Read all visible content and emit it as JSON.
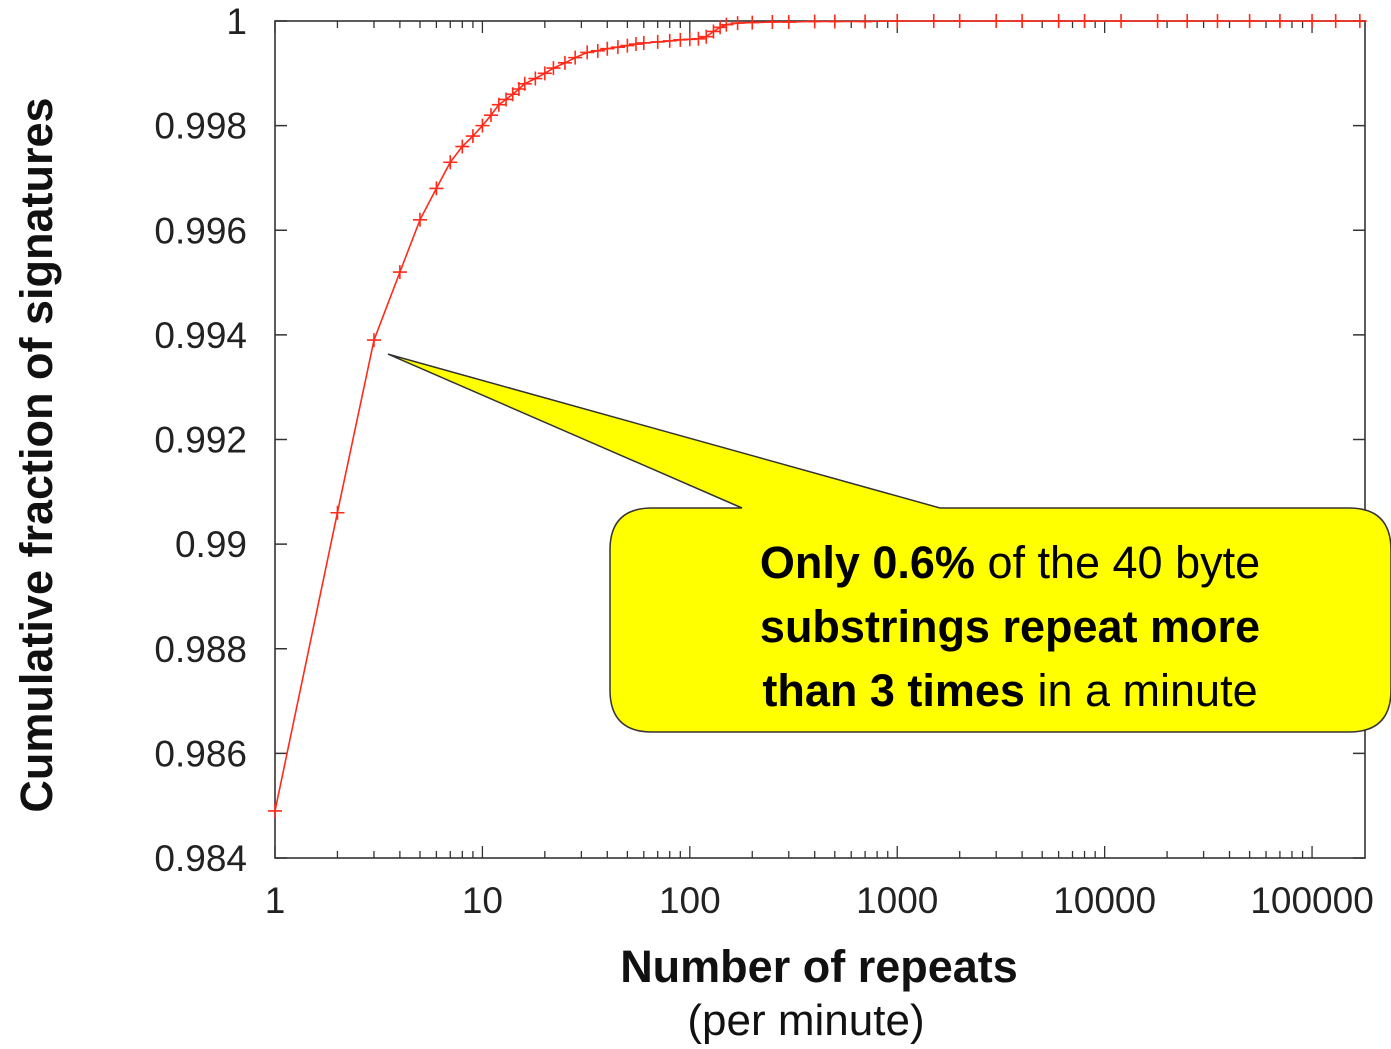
{
  "chart_data": {
    "type": "line",
    "xlabel": "Number of repeats",
    "xlabel_sub": "(per minute)",
    "ylabel": "Cumulative fraction of signatures",
    "x_scale": "log",
    "xlim": [
      1,
      180000
    ],
    "ylim": [
      0.984,
      1.0
    ],
    "x_ticks": [
      1,
      10,
      100,
      1000,
      10000,
      100000
    ],
    "x_tick_labels": [
      "1",
      "10",
      "100",
      "1000",
      "10000",
      "100000"
    ],
    "y_ticks": [
      0.984,
      0.986,
      0.988,
      0.99,
      0.992,
      0.994,
      0.996,
      0.998,
      1
    ],
    "y_tick_labels": [
      "0.984",
      "0.986",
      "0.988",
      "0.99",
      "0.992",
      "0.994",
      "0.996",
      "0.998",
      "1"
    ],
    "grid": false,
    "legend": "none",
    "series": [
      {
        "color": "#ff2a1a",
        "marker": "plus",
        "points": [
          [
            1,
            0.9849
          ],
          [
            2,
            0.9906
          ],
          [
            3,
            0.9939
          ],
          [
            4,
            0.9952
          ],
          [
            5,
            0.9962
          ],
          [
            6,
            0.9968
          ],
          [
            7,
            0.9973
          ],
          [
            8,
            0.9976
          ],
          [
            9,
            0.9978
          ],
          [
            10,
            0.998
          ],
          [
            11,
            0.9982
          ],
          [
            12,
            0.9984
          ],
          [
            13,
            0.9985
          ],
          [
            14,
            0.9986
          ],
          [
            15,
            0.9987
          ],
          [
            16,
            0.9988
          ],
          [
            18,
            0.9989
          ],
          [
            20,
            0.999
          ],
          [
            22,
            0.9991
          ],
          [
            25,
            0.9992
          ],
          [
            28,
            0.9993
          ],
          [
            32,
            0.9994
          ],
          [
            36,
            0.99943
          ],
          [
            40,
            0.99947
          ],
          [
            45,
            0.9995
          ],
          [
            50,
            0.99953
          ],
          [
            55,
            0.99956
          ],
          [
            60,
            0.99958
          ],
          [
            70,
            0.9996
          ],
          [
            80,
            0.99962
          ],
          [
            90,
            0.99964
          ],
          [
            100,
            0.99965
          ],
          [
            110,
            0.99966
          ],
          [
            120,
            0.9997
          ],
          [
            130,
            0.9998
          ],
          [
            140,
            0.99988
          ],
          [
            150,
            0.99993
          ],
          [
            170,
            0.99996
          ],
          [
            200,
            0.99997
          ],
          [
            250,
            0.99998
          ],
          [
            300,
            0.99998
          ],
          [
            400,
            0.99999
          ],
          [
            500,
            0.99999
          ],
          [
            700,
            0.99999
          ],
          [
            1000,
            1.0
          ],
          [
            1500,
            1.0
          ],
          [
            2000,
            1.0
          ],
          [
            3000,
            1.0
          ],
          [
            4000,
            1.0
          ],
          [
            6000,
            1.0
          ],
          [
            8000,
            1.0
          ],
          [
            12000,
            1.0
          ],
          [
            18000,
            1.0
          ],
          [
            25000,
            1.0
          ],
          [
            35000,
            1.0
          ],
          [
            50000,
            1.0
          ],
          [
            70000,
            1.0
          ],
          [
            100000,
            1.0
          ],
          [
            130000,
            1.0
          ],
          [
            170000,
            1.0
          ]
        ]
      }
    ],
    "annotation": {
      "anchor": [
        3,
        0.9939
      ],
      "fill": "#ffff00",
      "segments": [
        [
          {
            "text": "Only 0.6%",
            "bold": true
          },
          {
            "text": " of the 40 byte",
            "bold": false
          }
        ],
        [
          {
            "text": "substrings  repeat more",
            "bold": true
          }
        ],
        [
          {
            "text": "than 3 times",
            "bold": true
          },
          {
            "text": " in a minute",
            "bold": false
          }
        ]
      ]
    }
  }
}
